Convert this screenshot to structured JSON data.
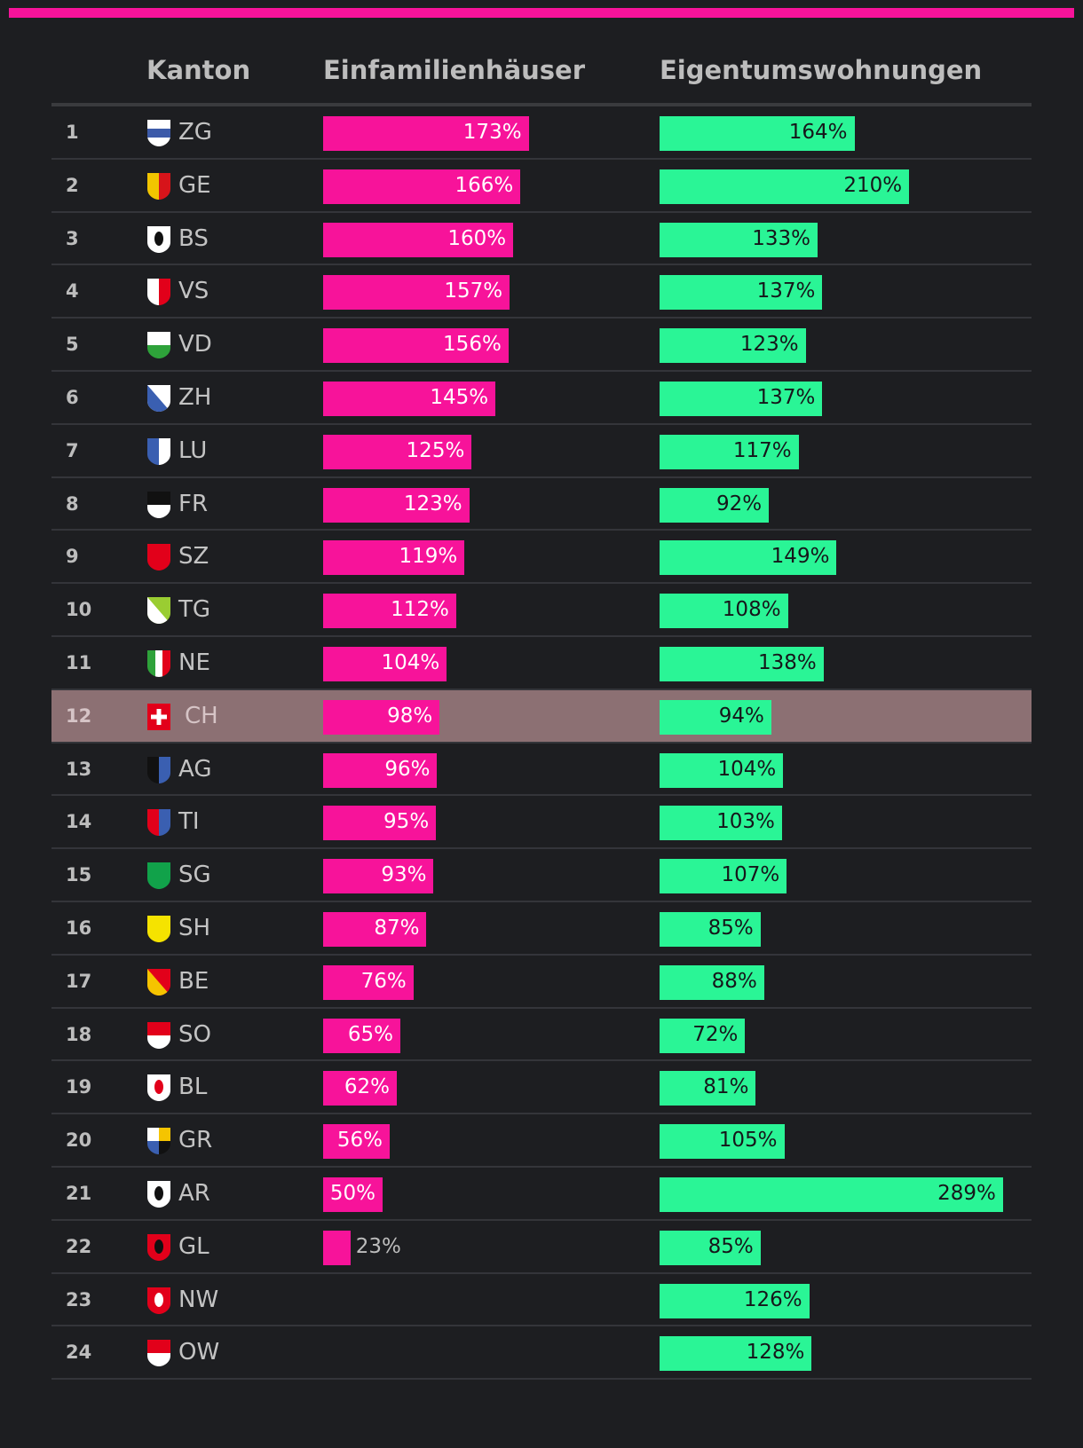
{
  "header": {
    "kanton": "Kanton",
    "efh": "Einfamilienhäuser",
    "etw": "Eigentumswohnungen"
  },
  "colors": {
    "accent": "#f7139a",
    "efh_bar": "#f7139a",
    "etw_bar": "#2af596",
    "highlight_row": "#8c7073",
    "background": "#1d1e21"
  },
  "chart_data": {
    "type": "bar",
    "orientation": "horizontal",
    "unit": "%",
    "categories": [
      "ZG",
      "GE",
      "BS",
      "VS",
      "VD",
      "ZH",
      "LU",
      "FR",
      "SZ",
      "TG",
      "NE",
      "CH",
      "AG",
      "TI",
      "SG",
      "SH",
      "BE",
      "SO",
      "BL",
      "GR",
      "AR",
      "GL",
      "NW",
      "OW"
    ],
    "ranks": [
      "1",
      "2",
      "3",
      "4",
      "5",
      "6",
      "7",
      "8",
      "9",
      "10",
      "11",
      "12",
      "13",
      "14",
      "15",
      "16",
      "17",
      "18",
      "19",
      "20",
      "21",
      "22",
      "23",
      "24"
    ],
    "highlight": "CH",
    "xlim": [
      0,
      300
    ],
    "series": [
      {
        "name": "Einfamilienhäuser",
        "values": [
          173,
          166,
          160,
          157,
          156,
          145,
          125,
          123,
          119,
          112,
          104,
          98,
          96,
          95,
          93,
          87,
          76,
          65,
          62,
          56,
          50,
          23,
          null,
          null
        ]
      },
      {
        "name": "Eigentumswohnungen",
        "values": [
          164,
          210,
          133,
          137,
          123,
          137,
          117,
          92,
          149,
          108,
          138,
          94,
          104,
          103,
          107,
          85,
          88,
          72,
          81,
          105,
          289,
          85,
          126,
          128
        ]
      }
    ],
    "flags": [
      {
        "type": "h2",
        "colors": [
          "#ffffff",
          "#3d5ba9",
          "#ffffff"
        ]
      },
      {
        "type": "v2",
        "colors": [
          "#f2c500",
          "#d7141a"
        ],
        "name": "ge-flag-icon"
      },
      {
        "type": "v2",
        "colors": [
          "#ffffff",
          "#ffffff"
        ],
        "mark": "#111111",
        "name": "bs-flag-icon"
      },
      {
        "type": "v2",
        "colors": [
          "#ffffff",
          "#e2001a"
        ],
        "name": "vs-flag-icon"
      },
      {
        "type": "h2",
        "colors": [
          "#ffffff",
          "#2ea23a"
        ],
        "name": "vd-flag-icon"
      },
      {
        "type": "diag",
        "colors": [
          "#ffffff",
          "#3a5fb1"
        ],
        "name": "zh-flag-icon"
      },
      {
        "type": "v2",
        "colors": [
          "#3a5fb1",
          "#ffffff"
        ],
        "name": "lu-flag-icon"
      },
      {
        "type": "h2",
        "colors": [
          "#111111",
          "#ffffff"
        ],
        "name": "fr-flag-icon"
      },
      {
        "type": "v2",
        "colors": [
          "#e2001a",
          "#e2001a"
        ],
        "name": "sz-flag-icon"
      },
      {
        "type": "diag",
        "colors": [
          "#9acd32",
          "#ffffff"
        ],
        "name": "tg-flag-icon"
      },
      {
        "type": "v3",
        "colors": [
          "#2ea23a",
          "#ffffff",
          "#e2001a"
        ],
        "name": "ne-flag-icon"
      },
      {
        "type": "ch",
        "colors": [
          "#e2001a",
          "#ffffff"
        ],
        "name": "ch-flag-icon"
      },
      {
        "type": "v2",
        "colors": [
          "#111111",
          "#3a5fb1"
        ],
        "name": "ag-flag-icon"
      },
      {
        "type": "v2",
        "colors": [
          "#e2001a",
          "#3a5fb1"
        ],
        "name": "ti-flag-icon"
      },
      {
        "type": "v2",
        "colors": [
          "#11a24a",
          "#11a24a"
        ],
        "name": "sg-flag-icon"
      },
      {
        "type": "v2",
        "colors": [
          "#f5e300",
          "#f5e300"
        ],
        "name": "sh-flag-icon"
      },
      {
        "type": "diag",
        "colors": [
          "#e2001a",
          "#f5c400"
        ],
        "name": "be-flag-icon"
      },
      {
        "type": "h2",
        "colors": [
          "#e2001a",
          "#ffffff"
        ],
        "name": "so-flag-icon"
      },
      {
        "type": "v2",
        "colors": [
          "#ffffff",
          "#ffffff"
        ],
        "mark": "#e2001a",
        "name": "bl-flag-icon"
      },
      {
        "type": "quad",
        "colors": [
          "#ffffff",
          "#f5c400",
          "#3a5fb1",
          "#111111"
        ],
        "name": "gr-flag-icon"
      },
      {
        "type": "v2",
        "colors": [
          "#ffffff",
          "#ffffff"
        ],
        "mark": "#111111",
        "name": "ar-flag-icon"
      },
      {
        "type": "v2",
        "colors": [
          "#e2001a",
          "#e2001a"
        ],
        "mark": "#111111",
        "name": "gl-flag-icon"
      },
      {
        "type": "v2",
        "colors": [
          "#e2001a",
          "#e2001a"
        ],
        "mark": "#ffffff",
        "name": "nw-flag-icon"
      },
      {
        "type": "h2",
        "colors": [
          "#e2001a",
          "#ffffff"
        ],
        "name": "ow-flag-icon"
      }
    ]
  }
}
